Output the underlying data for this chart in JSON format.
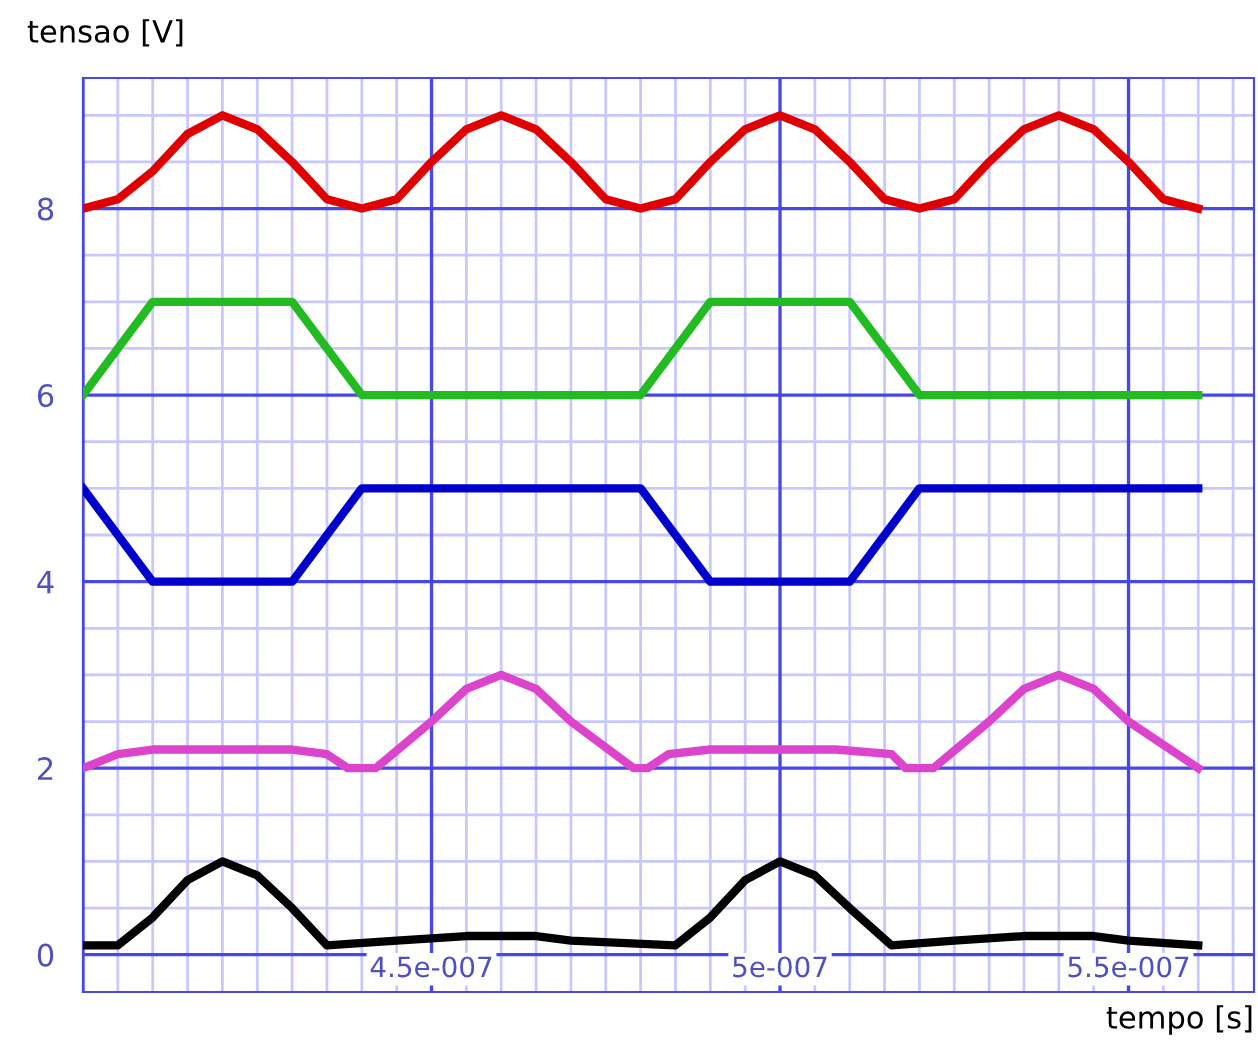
{
  "chart_data": {
    "type": "line",
    "ylabel": "tensao [V]",
    "xlabel": "tempo [s]",
    "xlim": [
      4e-07,
      5.68e-07
    ],
    "ylim": [
      -0.4,
      9.4
    ],
    "grid": true,
    "marker": "none",
    "line_style": "solid",
    "xticks": [
      {
        "value": 4e-07,
        "label": null
      },
      {
        "value": 4.05e-07,
        "label": null
      },
      {
        "value": 4.1e-07,
        "label": null
      },
      {
        "value": 4.15e-07,
        "label": null
      },
      {
        "value": 4.2e-07,
        "label": null
      },
      {
        "value": 4.25e-07,
        "label": null
      },
      {
        "value": 4.3e-07,
        "label": null
      },
      {
        "value": 4.35e-07,
        "label": null
      },
      {
        "value": 4.4e-07,
        "label": null
      },
      {
        "value": 4.45e-07,
        "label": null
      },
      {
        "value": 4.5e-07,
        "label": "4.5e-007"
      },
      {
        "value": 4.55e-07,
        "label": null
      },
      {
        "value": 4.6e-07,
        "label": null
      },
      {
        "value": 4.65e-07,
        "label": null
      },
      {
        "value": 4.7e-07,
        "label": null
      },
      {
        "value": 4.75e-07,
        "label": null
      },
      {
        "value": 4.8e-07,
        "label": null
      },
      {
        "value": 4.85e-07,
        "label": null
      },
      {
        "value": 4.9e-07,
        "label": null
      },
      {
        "value": 4.95e-07,
        "label": null
      },
      {
        "value": 5e-07,
        "label": "5e-007"
      },
      {
        "value": 5.05e-07,
        "label": null
      },
      {
        "value": 5.1e-07,
        "label": null
      },
      {
        "value": 5.15e-07,
        "label": null
      },
      {
        "value": 5.2e-07,
        "label": null
      },
      {
        "value": 5.25e-07,
        "label": null
      },
      {
        "value": 5.3e-07,
        "label": null
      },
      {
        "value": 5.35e-07,
        "label": null
      },
      {
        "value": 5.4e-07,
        "label": null
      },
      {
        "value": 5.45e-07,
        "label": null
      },
      {
        "value": 5.5e-07,
        "label": "5.5e-007"
      },
      {
        "value": 5.55e-07,
        "label": null
      },
      {
        "value": 5.6e-07,
        "label": null
      },
      {
        "value": 5.65e-07,
        "label": null
      }
    ],
    "yticks": [
      0,
      {
        "value": 0.5,
        "label": null
      },
      {
        "value": 1,
        "label": null
      },
      {
        "value": 1.5,
        "label": null
      },
      2,
      {
        "value": 2.5,
        "label": null
      },
      {
        "value": 3,
        "label": null
      },
      {
        "value": 3.5,
        "label": null
      },
      4,
      {
        "value": 4.5,
        "label": null
      },
      {
        "value": 5,
        "label": null
      },
      {
        "value": 5.5,
        "label": null
      },
      6,
      {
        "value": 6.5,
        "label": null
      },
      {
        "value": 7,
        "label": null
      },
      {
        "value": 7.5,
        "label": null
      },
      8,
      {
        "value": 8.5,
        "label": null
      },
      {
        "value": 9,
        "label": null
      }
    ],
    "series": [
      {
        "color": "#e00000",
        "x": [
          4e-07,
          4.05e-07,
          4.1e-07,
          4.15e-07,
          4.2e-07,
          4.25e-07,
          4.3e-07,
          4.35e-07,
          4.4e-07,
          4.45e-07,
          4.5e-07,
          4.55e-07,
          4.6e-07,
          4.65e-07,
          4.7e-07,
          4.75e-07,
          4.8e-07,
          4.85e-07,
          4.9e-07,
          4.95e-07,
          5e-07,
          5.05e-07,
          5.1e-07,
          5.15e-07,
          5.2e-07,
          5.25e-07,
          5.3e-07,
          5.35e-07,
          5.4e-07,
          5.45e-07,
          5.5e-07,
          5.55e-07,
          5.6e-07
        ],
        "values": [
          8.0,
          8.1,
          8.4,
          8.8,
          9.0,
          8.85,
          8.5,
          8.1,
          8.0,
          8.1,
          8.5,
          8.85,
          9.0,
          8.85,
          8.5,
          8.1,
          8.0,
          8.1,
          8.5,
          8.85,
          9.0,
          8.85,
          8.5,
          8.1,
          8.0,
          8.1,
          8.5,
          8.85,
          9.0,
          8.85,
          8.5,
          8.1,
          8.0
        ]
      },
      {
        "color": "#22bb22",
        "x": [
          4e-07,
          4.1e-07,
          4.3e-07,
          4.4e-07,
          4.8e-07,
          4.9e-07,
          5.1e-07,
          5.2e-07,
          5.6e-07
        ],
        "values": [
          6,
          7,
          7,
          6,
          6,
          7,
          7,
          6,
          6
        ]
      },
      {
        "color": "#0000cc",
        "x": [
          4e-07,
          4.1e-07,
          4.3e-07,
          4.4e-07,
          4.8e-07,
          4.9e-07,
          5.1e-07,
          5.2e-07,
          5.6e-07
        ],
        "values": [
          5,
          4,
          4,
          5,
          5,
          4,
          4,
          5,
          5
        ]
      },
      {
        "color": "#dd44cc",
        "x": [
          4e-07,
          4.05e-07,
          4.1e-07,
          4.3e-07,
          4.35e-07,
          4.38e-07,
          4.42e-07,
          4.5e-07,
          4.55e-07,
          4.6e-07,
          4.65e-07,
          4.7e-07,
          4.79e-07,
          4.81e-07,
          4.84e-07,
          4.9e-07,
          5.08e-07,
          5.16e-07,
          5.18e-07,
          5.22e-07,
          5.3e-07,
          5.35e-07,
          5.4e-07,
          5.45e-07,
          5.5e-07,
          5.6e-07
        ],
        "values": [
          2.0,
          2.15,
          2.2,
          2.2,
          2.15,
          2.0,
          2.0,
          2.5,
          2.85,
          3.0,
          2.85,
          2.5,
          2.0,
          2.0,
          2.15,
          2.2,
          2.2,
          2.15,
          2.0,
          2.0,
          2.5,
          2.85,
          3.0,
          2.85,
          2.5,
          2.0
        ]
      },
      {
        "color": "#000000",
        "x": [
          4e-07,
          4.05e-07,
          4.1e-07,
          4.15e-07,
          4.2e-07,
          4.25e-07,
          4.3e-07,
          4.35e-07,
          4.45e-07,
          4.55e-07,
          4.65e-07,
          4.7e-07,
          4.85e-07,
          4.9e-07,
          4.95e-07,
          5e-07,
          5.05e-07,
          5.1e-07,
          5.16e-07,
          5.25e-07,
          5.35e-07,
          5.45e-07,
          5.5e-07,
          5.6e-07
        ],
        "values": [
          0.1,
          0.1,
          0.4,
          0.8,
          1.0,
          0.85,
          0.5,
          0.1,
          0.15,
          0.2,
          0.2,
          0.15,
          0.1,
          0.4,
          0.8,
          1.0,
          0.85,
          0.5,
          0.1,
          0.15,
          0.2,
          0.2,
          0.15,
          0.1
        ]
      }
    ]
  }
}
